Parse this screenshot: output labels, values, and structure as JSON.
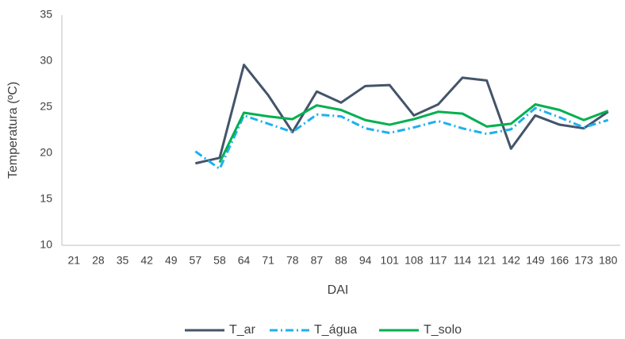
{
  "chart_data": {
    "type": "line",
    "x_label": "DAI",
    "y_label": "Temperatura (ºC)",
    "categories": [
      "21",
      "28",
      "35",
      "42",
      "49",
      "57",
      "58",
      "64",
      "71",
      "78",
      "87",
      "88",
      "94",
      "101",
      "108",
      "117",
      "114",
      "121",
      "142",
      "149",
      "166",
      "173",
      "180"
    ],
    "series": [
      {
        "name": "T_ar",
        "color": "#44546a",
        "dash": "solid",
        "values": [
          null,
          null,
          null,
          null,
          null,
          18.9,
          19.5,
          29.6,
          26.3,
          22.3,
          26.7,
          25.5,
          27.3,
          27.4,
          24.1,
          25.3,
          28.2,
          27.9,
          20.5,
          24.1,
          23.1,
          22.7,
          24.5
        ]
      },
      {
        "name": "T_água",
        "color": "#1fb0f0",
        "dash": "dash-dot",
        "values": [
          null,
          null,
          null,
          null,
          null,
          20.2,
          18.3,
          24.1,
          23.2,
          22.3,
          24.2,
          24.0,
          22.7,
          22.2,
          22.8,
          23.5,
          22.7,
          22.1,
          22.6,
          24.9,
          23.9,
          22.8,
          23.6
        ]
      },
      {
        "name": "T_solo",
        "color": "#00b050",
        "dash": "solid",
        "values": [
          null,
          null,
          null,
          null,
          null,
          null,
          19.0,
          24.4,
          24.0,
          23.7,
          25.2,
          24.7,
          23.6,
          23.1,
          23.7,
          24.5,
          24.3,
          22.9,
          23.2,
          25.3,
          24.7,
          23.6,
          24.6
        ]
      }
    ],
    "ylim": [
      10,
      35
    ],
    "yticks": [
      10,
      15,
      20,
      25,
      30,
      35
    ],
    "grid": false,
    "legend": "bottom"
  }
}
